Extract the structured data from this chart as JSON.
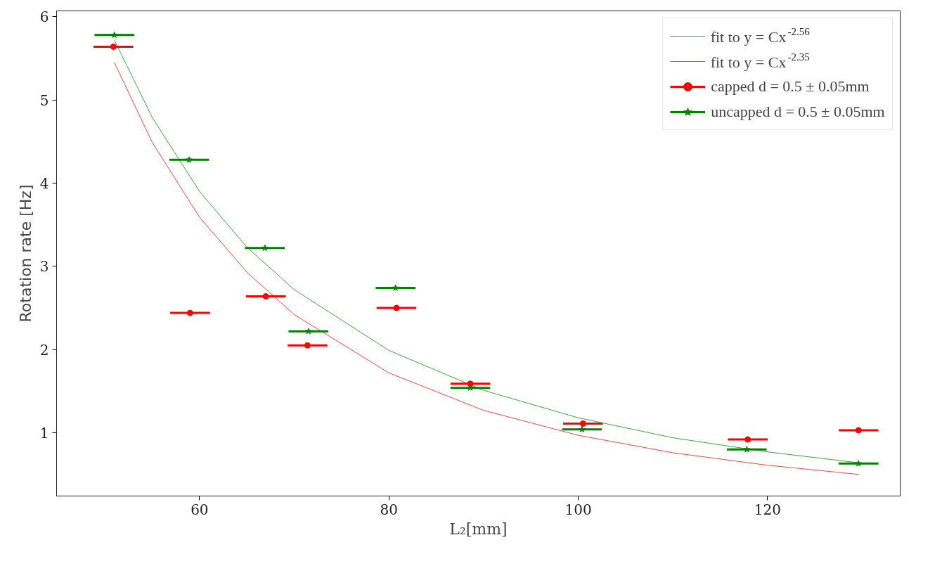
{
  "chart_data": {
    "type": "scatter",
    "xlabel": "L₂[mm]",
    "ylabel": "Rotation rate [Hz]",
    "xlim": [
      44.9,
      134
    ],
    "ylim": [
      0.24,
      6.07
    ],
    "xticks": [
      60,
      80,
      100,
      120
    ],
    "yticks": [
      1,
      2,
      3,
      4,
      5,
      6
    ],
    "grid": false,
    "legend": "top right",
    "series": [
      {
        "name": "fit to y = Cx$^{-2.56}$",
        "type": "line",
        "color": "#ff0000",
        "line_style": "solid",
        "x": [
          51,
          55,
          60,
          65,
          70,
          80,
          90,
          100,
          110,
          120,
          129.6
        ],
        "values": [
          5.45,
          4.49,
          3.59,
          2.93,
          2.42,
          1.72,
          1.27,
          0.97,
          0.76,
          0.61,
          0.5
        ]
      },
      {
        "name": "fit to y = Cx$^{-2.35}$",
        "type": "line",
        "color": "#008000",
        "line_style": "solid",
        "x": [
          51,
          55,
          60,
          65,
          70,
          80,
          90,
          100,
          110,
          120,
          129.6
        ],
        "values": [
          5.72,
          4.79,
          3.9,
          3.23,
          2.72,
          1.99,
          1.51,
          1.18,
          0.94,
          0.77,
          0.64
        ]
      },
      {
        "name": "capped d = 0.5 ± 0.05mm",
        "color": "#ff0000",
        "marker": "circle",
        "x": [
          50.9,
          59.0,
          67.0,
          71.4,
          80.8,
          88.6,
          100.5,
          117.9,
          129.6
        ],
        "values": [
          5.64,
          2.44,
          2.64,
          2.05,
          2.5,
          1.59,
          1.11,
          0.92,
          1.03
        ],
        "xerrors": [
          2.1,
          2.1,
          2.1,
          2.1,
          2.1,
          2.1,
          2.1,
          2.1,
          2.1
        ]
      },
      {
        "name": "uncapped d = 0.5 ± 0.05mm",
        "color": "#008000",
        "marker": "star",
        "x": [
          51.0,
          58.9,
          66.9,
          71.5,
          80.7,
          88.6,
          100.4,
          117.8,
          129.6
        ],
        "values": [
          5.78,
          4.28,
          3.22,
          2.22,
          2.74,
          1.54,
          1.04,
          0.8,
          0.63
        ],
        "xerrors": [
          2.1,
          2.1,
          2.1,
          2.1,
          2.1,
          2.1,
          2.1,
          2.1,
          2.1
        ]
      }
    ]
  }
}
